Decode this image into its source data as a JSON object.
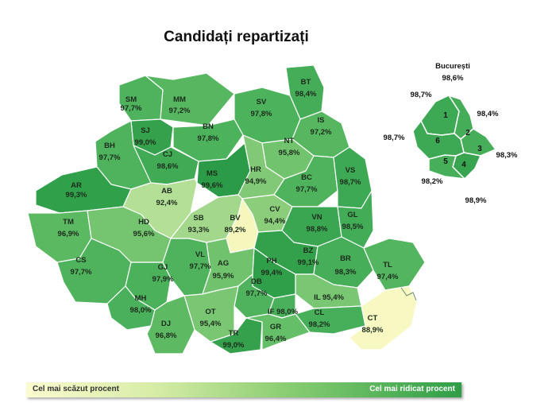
{
  "title": "Candidați repartizați",
  "colors": {
    "lowest": "#fbfbc6",
    "low": "#c7e6a0",
    "mid": "#8fd07c",
    "high": "#58b964",
    "highest": "#2a9a46",
    "border": "#ffffff"
  },
  "counties": [
    {
      "code": "SM",
      "value": "97,7%",
      "fill": "#4fb35d"
    },
    {
      "code": "MM",
      "value": "97,2%",
      "fill": "#57b760"
    },
    {
      "code": "BT",
      "value": "98,4%",
      "fill": "#45ad58"
    },
    {
      "code": "SV",
      "value": "97,8%",
      "fill": "#4db25c"
    },
    {
      "code": "SJ",
      "value": "99,0%",
      "fill": "#35a14c"
    },
    {
      "code": "BN",
      "value": "97,8%",
      "fill": "#4db25c"
    },
    {
      "code": "IS",
      "value": "97,2%",
      "fill": "#57b760"
    },
    {
      "code": "BH",
      "value": "97,7%",
      "fill": "#4fb35d"
    },
    {
      "code": "CJ",
      "value": "98,6%",
      "fill": "#40aa55"
    },
    {
      "code": "NT",
      "value": "95,8%",
      "fill": "#72c36e"
    },
    {
      "code": "MS",
      "value": "99,6%",
      "fill": "#2c9b47"
    },
    {
      "code": "HR",
      "value": "94,9%",
      "fill": "#82c977"
    },
    {
      "code": "BC",
      "value": "97,7%",
      "fill": "#4fb35d"
    },
    {
      "code": "VS",
      "value": "98,7%",
      "fill": "#3ea954"
    },
    {
      "code": "AR",
      "value": "99,3%",
      "fill": "#30a04a"
    },
    {
      "code": "AB",
      "value": "92,4%",
      "fill": "#b3df96"
    },
    {
      "code": "CV",
      "value": "94,4%",
      "fill": "#8ccd7b"
    },
    {
      "code": "TM",
      "value": "96,9%",
      "fill": "#5bb962"
    },
    {
      "code": "HD",
      "value": "95,6%",
      "fill": "#75c470"
    },
    {
      "code": "SB",
      "value": "93,3%",
      "fill": "#a3d88c"
    },
    {
      "code": "BV",
      "value": "89,2%",
      "fill": "#f5f7bd"
    },
    {
      "code": "VN",
      "value": "98,8%",
      "fill": "#3aa652"
    },
    {
      "code": "GL",
      "value": "98,5%",
      "fill": "#43ac57"
    },
    {
      "code": "BZ",
      "value": "99,1%",
      "fill": "#33a14b"
    },
    {
      "code": "CS",
      "value": "97,7%",
      "fill": "#4fb35d"
    },
    {
      "code": "GJ",
      "value": "97,9%",
      "fill": "#4bb15b"
    },
    {
      "code": "VL",
      "value": "97,7%",
      "fill": "#4fb35d"
    },
    {
      "code": "AG",
      "value": "95,9%",
      "fill": "#70c26d"
    },
    {
      "code": "PH",
      "value": "99,4%",
      "fill": "#2f9f49"
    },
    {
      "code": "BR",
      "value": "98,3%",
      "fill": "#46ad58"
    },
    {
      "code": "TL",
      "value": "97,4%",
      "fill": "#53b55f"
    },
    {
      "code": "DB",
      "value": "97,7%",
      "fill": "#4fb35d"
    },
    {
      "code": "IL",
      "value": "95,4%",
      "fill": "#79c673"
    },
    {
      "code": "MH",
      "value": "98,0%",
      "fill": "#4ab05b"
    },
    {
      "code": "OT",
      "value": "95,4%",
      "fill": "#79c673"
    },
    {
      "code": "IF",
      "value": "98,0%",
      "fill": "#4ab05b"
    },
    {
      "code": "CL",
      "value": "98,2%",
      "fill": "#47ae59"
    },
    {
      "code": "CT",
      "value": "88,9%",
      "fill": "#f7f8c2"
    },
    {
      "code": "DJ",
      "value": "96,8%",
      "fill": "#5dba63"
    },
    {
      "code": "TR",
      "value": "99,0%",
      "fill": "#35a14c"
    },
    {
      "code": "GR",
      "value": "96,4%",
      "fill": "#65be68"
    }
  ],
  "bucharest": {
    "title": "București",
    "total": "98,6%",
    "sectors": [
      {
        "num": "1",
        "value": "98,7%",
        "fill": "#3ea954"
      },
      {
        "num": "2",
        "value": "98,4%",
        "fill": "#45ad58"
      },
      {
        "num": "3",
        "value": "98,3%",
        "fill": "#46ad58"
      },
      {
        "num": "4",
        "value": "98,9%",
        "fill": "#38a450"
      },
      {
        "num": "5",
        "value": "98,2%",
        "fill": "#47ae59"
      },
      {
        "num": "6",
        "value": "98,7%",
        "fill": "#3ea954"
      }
    ]
  },
  "legend": {
    "low_label": "Cel mai scăzut procent",
    "high_label": "Cel mai ridicat procent"
  }
}
